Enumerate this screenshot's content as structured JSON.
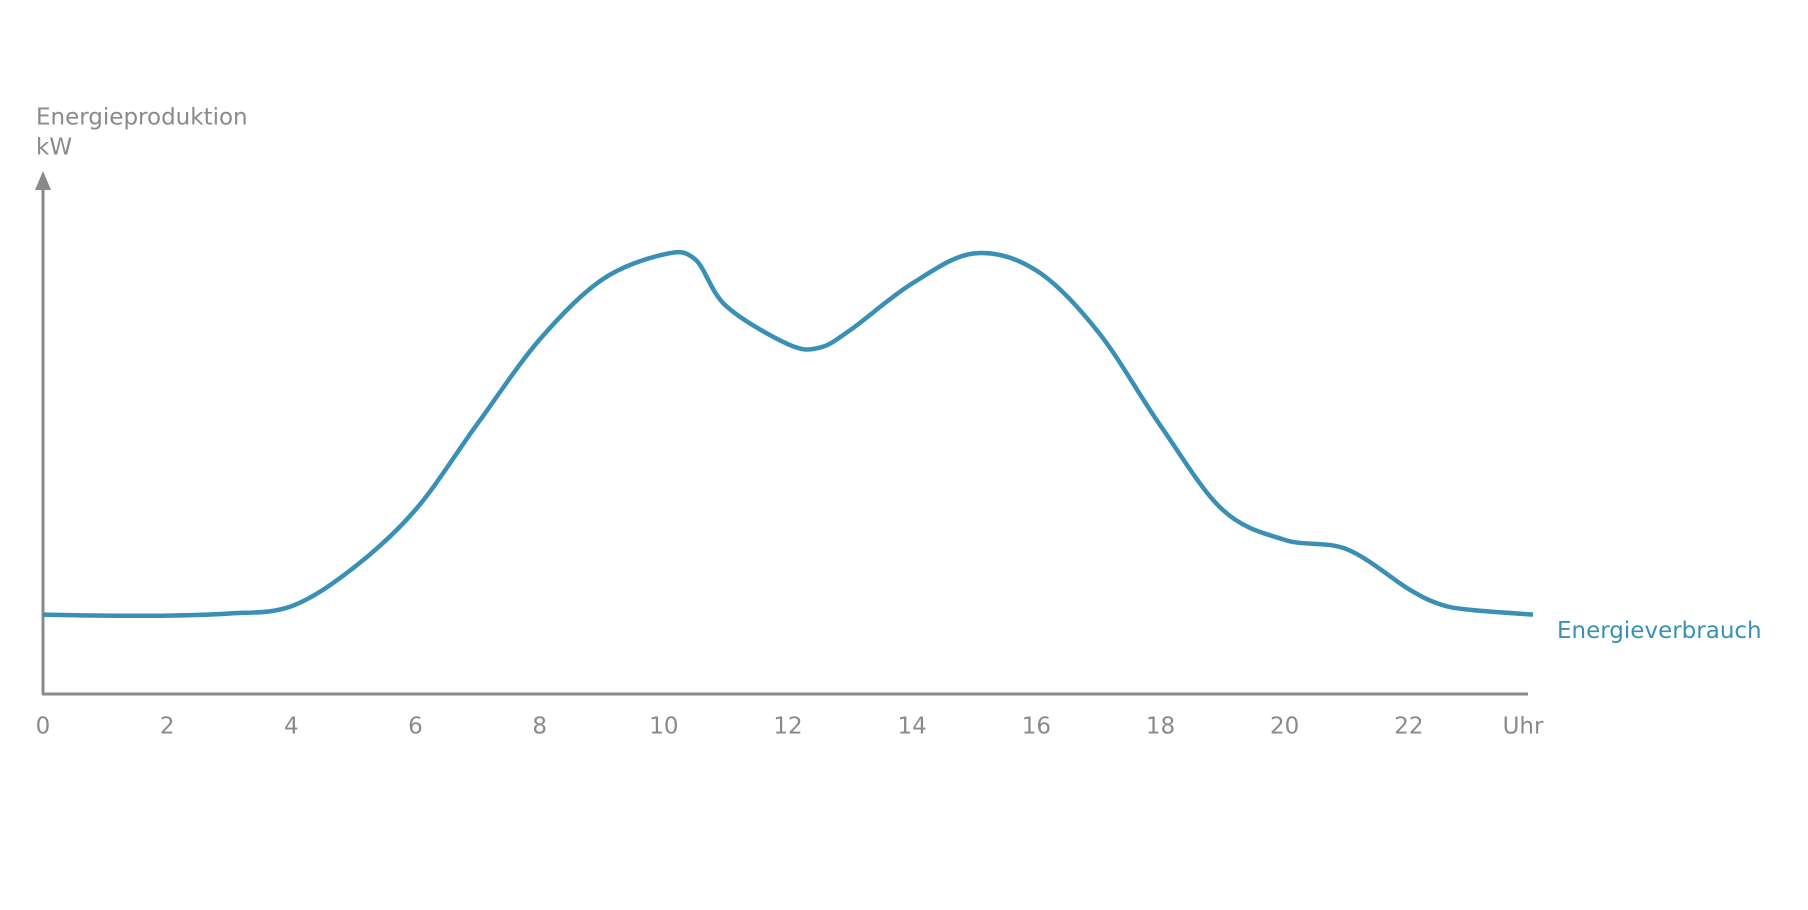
{
  "chart_data": {
    "type": "line",
    "ylabel": [
      "Energieproduktion",
      "kW"
    ],
    "x": [
      0,
      1,
      2,
      3,
      4,
      5,
      6,
      7,
      8,
      9,
      10,
      10.5,
      11,
      12,
      12.5,
      13,
      14,
      15,
      16,
      17,
      18,
      19,
      20,
      21,
      22,
      22.5,
      23,
      24
    ],
    "series": [
      {
        "name": "Energieverbrauch",
        "color": "#3a8fb5",
        "values": [
          15.3,
          15.1,
          15.1,
          15.5,
          16.9,
          24.3,
          35.5,
          52.1,
          68.3,
          79.8,
          84.7,
          83.8,
          74.8,
          67.4,
          66.7,
          70.1,
          79.1,
          84.9,
          81.6,
          69.7,
          51.7,
          35.5,
          29.7,
          27.9,
          20.2,
          17.3,
          16.2,
          15.3
        ]
      }
    ],
    "xlim": [
      0,
      24
    ],
    "xticks": [
      0,
      2,
      4,
      6,
      8,
      10,
      12,
      14,
      16,
      18,
      20,
      22,
      {
        "value": 24,
        "label": "Uhr"
      }
    ],
    "ylim": [
      0,
      100
    ],
    "grid": false
  }
}
